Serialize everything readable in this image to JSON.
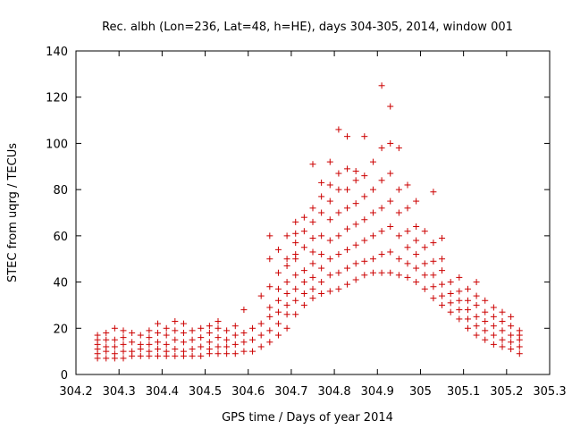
{
  "chart_data": {
    "type": "scatter",
    "title": "Rec. albh (Lon=236, Lat=48, h=HE), days 304-305, 2014, window 001",
    "xlabel": "GPS time / Days of year 2014",
    "ylabel": "STEC from uqrg / TECUs",
    "xlim": [
      304.2,
      305.3
    ],
    "ylim": [
      0,
      140
    ],
    "x_ticks": [
      "304.2",
      "304.3",
      "304.4",
      "304.5",
      "304.6",
      "304.7",
      "304.8",
      "304.9",
      "305",
      "305.1",
      "305.2",
      "305.3"
    ],
    "y_ticks": [
      "0",
      "20",
      "40",
      "60",
      "80",
      "100",
      "120",
      "140"
    ],
    "grid": false,
    "marker": "+",
    "color": "#cc0000",
    "series": [
      {
        "points": [
          [
            304.25,
            7
          ],
          [
            304.25,
            9
          ],
          [
            304.25,
            11
          ],
          [
            304.25,
            13
          ],
          [
            304.25,
            15
          ],
          [
            304.25,
            17
          ],
          [
            304.27,
            7
          ],
          [
            304.27,
            10
          ],
          [
            304.27,
            12
          ],
          [
            304.27,
            15
          ],
          [
            304.27,
            18
          ],
          [
            304.29,
            7
          ],
          [
            304.29,
            9
          ],
          [
            304.29,
            12
          ],
          [
            304.29,
            15
          ],
          [
            304.29,
            20
          ],
          [
            304.31,
            7
          ],
          [
            304.31,
            10
          ],
          [
            304.31,
            13
          ],
          [
            304.31,
            16
          ],
          [
            304.31,
            19
          ],
          [
            304.33,
            8
          ],
          [
            304.33,
            10
          ],
          [
            304.33,
            14
          ],
          [
            304.33,
            18
          ],
          [
            304.35,
            8
          ],
          [
            304.35,
            11
          ],
          [
            304.35,
            13
          ],
          [
            304.35,
            17
          ],
          [
            304.37,
            8
          ],
          [
            304.37,
            10
          ],
          [
            304.37,
            13
          ],
          [
            304.37,
            16
          ],
          [
            304.37,
            19
          ],
          [
            304.39,
            8
          ],
          [
            304.39,
            11
          ],
          [
            304.39,
            14
          ],
          [
            304.39,
            18
          ],
          [
            304.39,
            22
          ],
          [
            304.41,
            8
          ],
          [
            304.41,
            10
          ],
          [
            304.41,
            13
          ],
          [
            304.41,
            17
          ],
          [
            304.41,
            20
          ],
          [
            304.43,
            8
          ],
          [
            304.43,
            11
          ],
          [
            304.43,
            15
          ],
          [
            304.43,
            19
          ],
          [
            304.43,
            23
          ],
          [
            304.45,
            8
          ],
          [
            304.45,
            10
          ],
          [
            304.45,
            14
          ],
          [
            304.45,
            18
          ],
          [
            304.45,
            22
          ],
          [
            304.47,
            8
          ],
          [
            304.47,
            11
          ],
          [
            304.47,
            15
          ],
          [
            304.47,
            19
          ],
          [
            304.49,
            8
          ],
          [
            304.49,
            12
          ],
          [
            304.49,
            16
          ],
          [
            304.49,
            20
          ],
          [
            304.51,
            9
          ],
          [
            304.51,
            11
          ],
          [
            304.51,
            14
          ],
          [
            304.51,
            18
          ],
          [
            304.51,
            21
          ],
          [
            304.53,
            9
          ],
          [
            304.53,
            12
          ],
          [
            304.53,
            16
          ],
          [
            304.53,
            20
          ],
          [
            304.53,
            23
          ],
          [
            304.55,
            9
          ],
          [
            304.55,
            12
          ],
          [
            304.55,
            15
          ],
          [
            304.55,
            19
          ],
          [
            304.57,
            9
          ],
          [
            304.57,
            13
          ],
          [
            304.57,
            17
          ],
          [
            304.57,
            21
          ],
          [
            304.59,
            10
          ],
          [
            304.59,
            14
          ],
          [
            304.59,
            18
          ],
          [
            304.59,
            28
          ],
          [
            304.61,
            10
          ],
          [
            304.61,
            15
          ],
          [
            304.61,
            20
          ],
          [
            304.63,
            12
          ],
          [
            304.63,
            17
          ],
          [
            304.63,
            22
          ],
          [
            304.63,
            34
          ],
          [
            304.65,
            14
          ],
          [
            304.65,
            19
          ],
          [
            304.65,
            25
          ],
          [
            304.65,
            29
          ],
          [
            304.65,
            38
          ],
          [
            304.65,
            50
          ],
          [
            304.65,
            60
          ],
          [
            304.67,
            17
          ],
          [
            304.67,
            22
          ],
          [
            304.67,
            27
          ],
          [
            304.67,
            32
          ],
          [
            304.67,
            37
          ],
          [
            304.67,
            44
          ],
          [
            304.67,
            54
          ],
          [
            304.69,
            20
          ],
          [
            304.69,
            26
          ],
          [
            304.69,
            30
          ],
          [
            304.69,
            35
          ],
          [
            304.69,
            40
          ],
          [
            304.69,
            47
          ],
          [
            304.69,
            50
          ],
          [
            304.69,
            60
          ],
          [
            304.71,
            26
          ],
          [
            304.71,
            32
          ],
          [
            304.71,
            37
          ],
          [
            304.71,
            43
          ],
          [
            304.71,
            50
          ],
          [
            304.71,
            52
          ],
          [
            304.71,
            57
          ],
          [
            304.71,
            61
          ],
          [
            304.71,
            66
          ],
          [
            304.73,
            30
          ],
          [
            304.73,
            35
          ],
          [
            304.73,
            40
          ],
          [
            304.73,
            45
          ],
          [
            304.73,
            55
          ],
          [
            304.73,
            62
          ],
          [
            304.73,
            68
          ],
          [
            304.75,
            33
          ],
          [
            304.75,
            37
          ],
          [
            304.75,
            42
          ],
          [
            304.75,
            48
          ],
          [
            304.75,
            53
          ],
          [
            304.75,
            59
          ],
          [
            304.75,
            66
          ],
          [
            304.75,
            72
          ],
          [
            304.75,
            91
          ],
          [
            304.77,
            35
          ],
          [
            304.77,
            40
          ],
          [
            304.77,
            46
          ],
          [
            304.77,
            52
          ],
          [
            304.77,
            60
          ],
          [
            304.77,
            70
          ],
          [
            304.77,
            77
          ],
          [
            304.77,
            83
          ],
          [
            304.79,
            36
          ],
          [
            304.79,
            43
          ],
          [
            304.79,
            50
          ],
          [
            304.79,
            58
          ],
          [
            304.79,
            67
          ],
          [
            304.79,
            75
          ],
          [
            304.79,
            82
          ],
          [
            304.79,
            92
          ],
          [
            304.81,
            37
          ],
          [
            304.81,
            44
          ],
          [
            304.81,
            52
          ],
          [
            304.81,
            60
          ],
          [
            304.81,
            70
          ],
          [
            304.81,
            80
          ],
          [
            304.81,
            87
          ],
          [
            304.81,
            106
          ],
          [
            304.83,
            39
          ],
          [
            304.83,
            46
          ],
          [
            304.83,
            54
          ],
          [
            304.83,
            63
          ],
          [
            304.83,
            72
          ],
          [
            304.83,
            80
          ],
          [
            304.83,
            89
          ],
          [
            304.83,
            103
          ],
          [
            304.85,
            41
          ],
          [
            304.85,
            48
          ],
          [
            304.85,
            56
          ],
          [
            304.85,
            65
          ],
          [
            304.85,
            74
          ],
          [
            304.85,
            84
          ],
          [
            304.85,
            88
          ],
          [
            304.87,
            43
          ],
          [
            304.87,
            49
          ],
          [
            304.87,
            58
          ],
          [
            304.87,
            67
          ],
          [
            304.87,
            77
          ],
          [
            304.87,
            86
          ],
          [
            304.87,
            103
          ],
          [
            304.89,
            44
          ],
          [
            304.89,
            50
          ],
          [
            304.89,
            60
          ],
          [
            304.89,
            70
          ],
          [
            304.89,
            80
          ],
          [
            304.89,
            92
          ],
          [
            304.91,
            44
          ],
          [
            304.91,
            52
          ],
          [
            304.91,
            62
          ],
          [
            304.91,
            72
          ],
          [
            304.91,
            84
          ],
          [
            304.91,
            98
          ],
          [
            304.91,
            125
          ],
          [
            304.93,
            44
          ],
          [
            304.93,
            53
          ],
          [
            304.93,
            64
          ],
          [
            304.93,
            75
          ],
          [
            304.93,
            87
          ],
          [
            304.93,
            100
          ],
          [
            304.93,
            116
          ],
          [
            304.95,
            43
          ],
          [
            304.95,
            50
          ],
          [
            304.95,
            60
          ],
          [
            304.95,
            70
          ],
          [
            304.95,
            80
          ],
          [
            304.95,
            98
          ],
          [
            304.97,
            42
          ],
          [
            304.97,
            48
          ],
          [
            304.97,
            55
          ],
          [
            304.97,
            62
          ],
          [
            304.97,
            72
          ],
          [
            304.97,
            82
          ],
          [
            304.99,
            40
          ],
          [
            304.99,
            46
          ],
          [
            304.99,
            52
          ],
          [
            304.99,
            58
          ],
          [
            304.99,
            64
          ],
          [
            304.99,
            75
          ],
          [
            305.01,
            37
          ],
          [
            305.01,
            43
          ],
          [
            305.01,
            48
          ],
          [
            305.01,
            55
          ],
          [
            305.01,
            62
          ],
          [
            305.03,
            33
          ],
          [
            305.03,
            38
          ],
          [
            305.03,
            43
          ],
          [
            305.03,
            49
          ],
          [
            305.03,
            57
          ],
          [
            305.03,
            79
          ],
          [
            305.05,
            30
          ],
          [
            305.05,
            34
          ],
          [
            305.05,
            39
          ],
          [
            305.05,
            45
          ],
          [
            305.05,
            50
          ],
          [
            305.05,
            59
          ],
          [
            305.07,
            27
          ],
          [
            305.07,
            31
          ],
          [
            305.07,
            35
          ],
          [
            305.07,
            40
          ],
          [
            305.09,
            24
          ],
          [
            305.09,
            28
          ],
          [
            305.09,
            32
          ],
          [
            305.09,
            36
          ],
          [
            305.09,
            42
          ],
          [
            305.11,
            20
          ],
          [
            305.11,
            24
          ],
          [
            305.11,
            28
          ],
          [
            305.11,
            32
          ],
          [
            305.11,
            37
          ],
          [
            305.13,
            17
          ],
          [
            305.13,
            21
          ],
          [
            305.13,
            25
          ],
          [
            305.13,
            30
          ],
          [
            305.13,
            34
          ],
          [
            305.13,
            40
          ],
          [
            305.15,
            15
          ],
          [
            305.15,
            19
          ],
          [
            305.15,
            23
          ],
          [
            305.15,
            27
          ],
          [
            305.15,
            32
          ],
          [
            305.17,
            13
          ],
          [
            305.17,
            17
          ],
          [
            305.17,
            21
          ],
          [
            305.17,
            25
          ],
          [
            305.17,
            29
          ],
          [
            305.19,
            12
          ],
          [
            305.19,
            15
          ],
          [
            305.19,
            19
          ],
          [
            305.19,
            23
          ],
          [
            305.19,
            27
          ],
          [
            305.21,
            11
          ],
          [
            305.21,
            14
          ],
          [
            305.21,
            17
          ],
          [
            305.21,
            21
          ],
          [
            305.21,
            25
          ],
          [
            305.23,
            9
          ],
          [
            305.23,
            12
          ],
          [
            305.23,
            15
          ],
          [
            305.23,
            17
          ],
          [
            305.23,
            19
          ]
        ]
      }
    ]
  }
}
